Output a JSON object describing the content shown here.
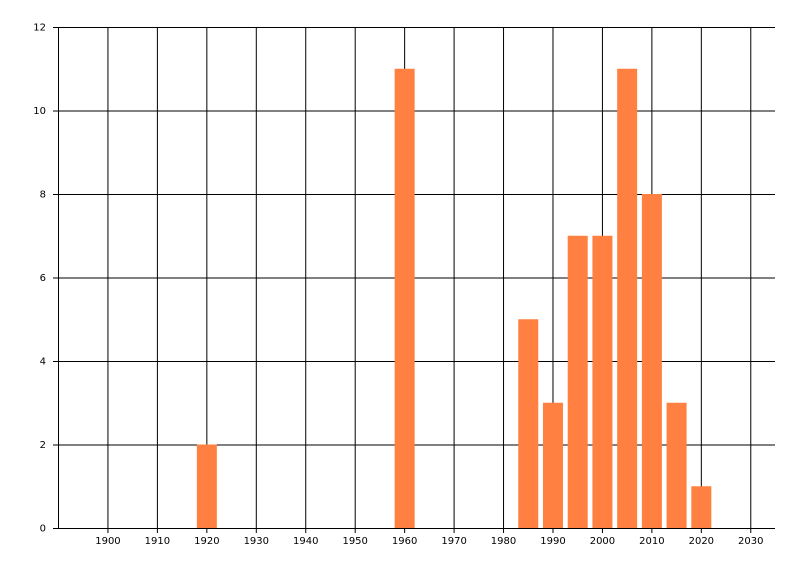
{
  "chart_data": {
    "type": "bar",
    "x": [
      1920,
      1960,
      1985,
      1990,
      1995,
      2000,
      2005,
      2010,
      2015,
      2020
    ],
    "values": [
      2,
      11,
      5,
      3,
      7,
      7,
      11,
      8,
      3,
      1
    ],
    "color": "#ff8040",
    "xlim": [
      1890,
      2035
    ],
    "xticks": [
      1900,
      1910,
      1920,
      1930,
      1940,
      1950,
      1960,
      1970,
      1980,
      1990,
      2000,
      2010,
      2020,
      2030
    ],
    "ylim": [
      0,
      12
    ],
    "yticks": [
      0,
      2,
      4,
      6,
      8,
      10,
      12
    ],
    "grid": true
  }
}
